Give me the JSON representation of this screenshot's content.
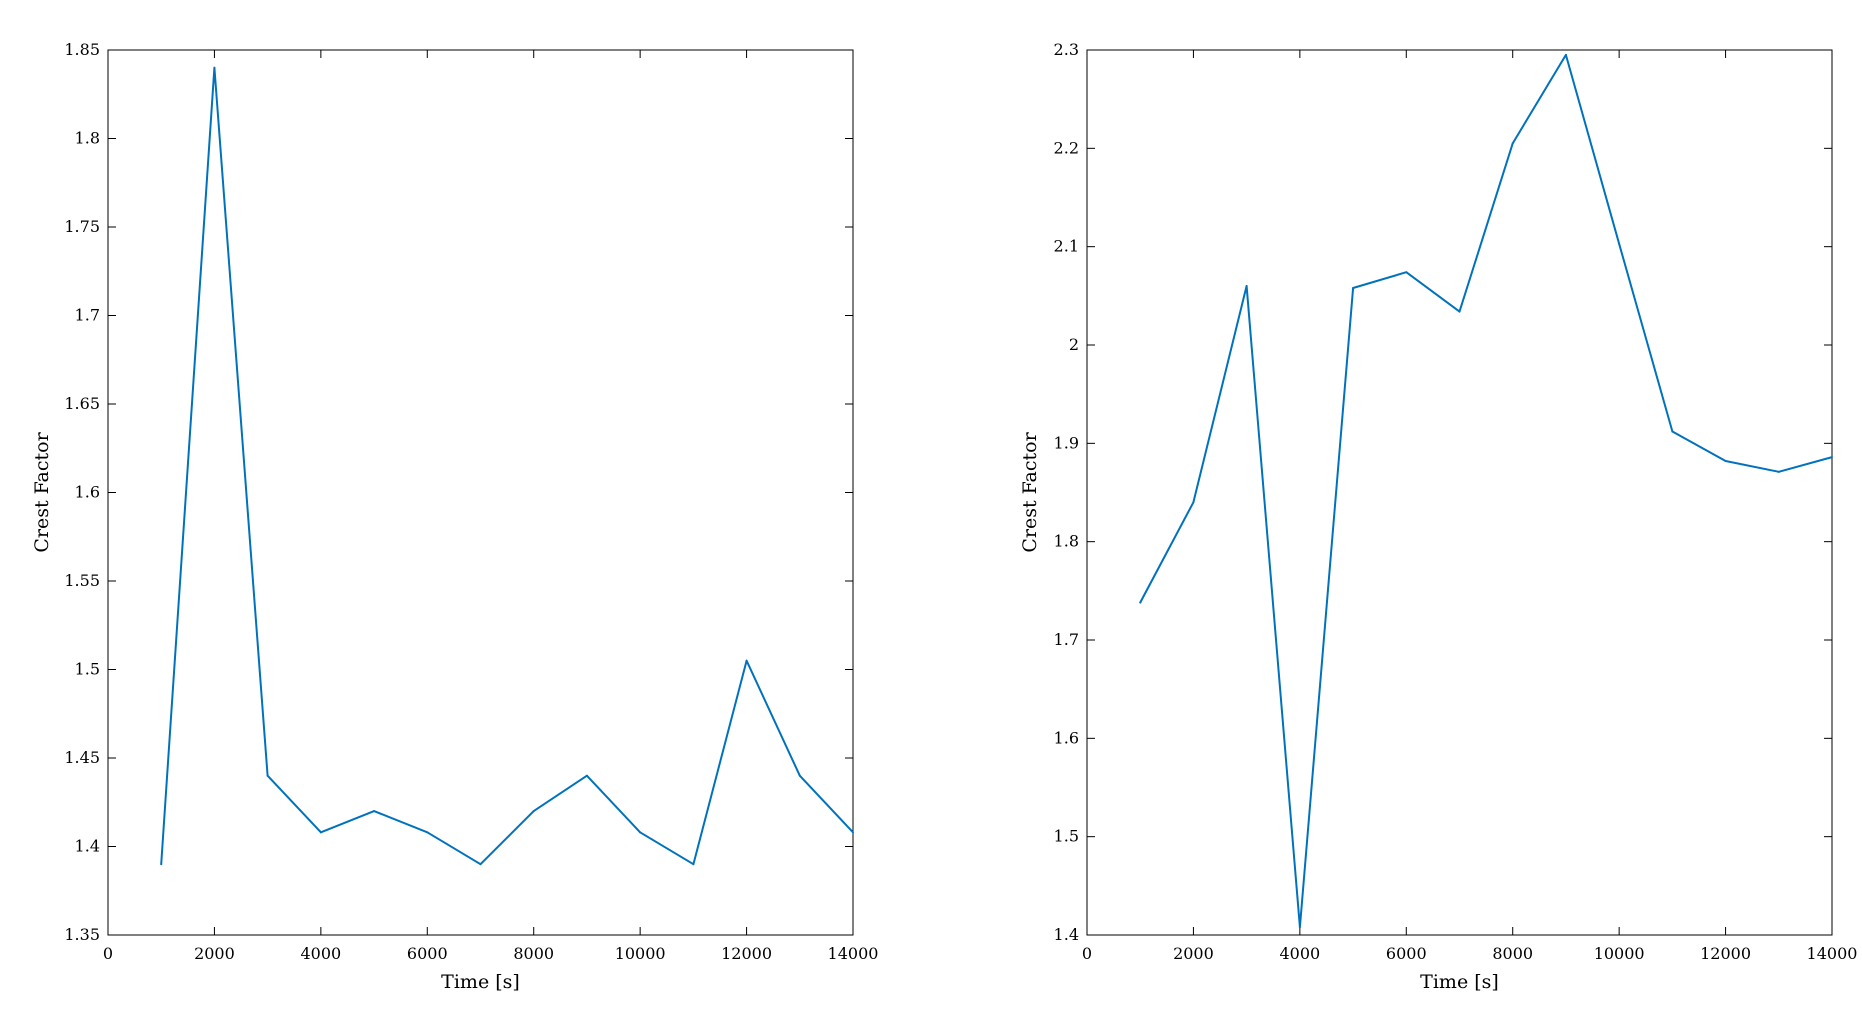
{
  "colors": {
    "series": "#0072BD",
    "axis": "#000000",
    "background": "#ffffff"
  },
  "chart_data": [
    {
      "type": "line",
      "xlabel": "Time [s]",
      "ylabel": "Crest Factor",
      "xlim": [
        0,
        14000
      ],
      "ylim": [
        1.35,
        1.85
      ],
      "xticks": [
        0,
        2000,
        4000,
        6000,
        8000,
        10000,
        12000,
        14000
      ],
      "xtick_labels": [
        "0",
        "2000",
        "4000",
        "6000",
        "8000",
        "10000",
        "12000",
        "14000"
      ],
      "yticks": [
        1.35,
        1.4,
        1.45,
        1.5,
        1.55,
        1.6,
        1.65,
        1.7,
        1.75,
        1.8,
        1.85
      ],
      "ytick_labels": [
        "1.35",
        "1.4",
        "1.45",
        "1.5",
        "1.55",
        "1.6",
        "1.65",
        "1.7",
        "1.75",
        "1.8",
        "1.85"
      ],
      "grid": false,
      "series": [
        {
          "x": [
            1000,
            2000,
            3000,
            4000,
            5000,
            6000,
            7000,
            8000,
            9000,
            10000,
            11000,
            12000,
            13000,
            14000
          ],
          "y": [
            1.39,
            1.84,
            1.44,
            1.408,
            1.42,
            1.408,
            1.39,
            1.42,
            1.44,
            1.408,
            1.39,
            1.505,
            1.44,
            1.408
          ]
        }
      ]
    },
    {
      "type": "line",
      "xlabel": "Time [s]",
      "ylabel": "Crest Factor",
      "xlim": [
        0,
        14000
      ],
      "ylim": [
        1.4,
        2.3
      ],
      "xticks": [
        0,
        2000,
        4000,
        6000,
        8000,
        10000,
        12000,
        14000
      ],
      "xtick_labels": [
        "0",
        "2000",
        "4000",
        "6000",
        "8000",
        "10000",
        "12000",
        "14000"
      ],
      "yticks": [
        1.4,
        1.5,
        1.6,
        1.7,
        1.8,
        1.9,
        2.0,
        2.1,
        2.2,
        2.3
      ],
      "ytick_labels": [
        "1.4",
        "1.5",
        "1.6",
        "1.7",
        "1.8",
        "1.9",
        "2",
        "2.1",
        "2.2",
        "2.3"
      ],
      "grid": false,
      "series": [
        {
          "x": [
            1000,
            2000,
            3000,
            4000,
            5000,
            6000,
            7000,
            8000,
            9000,
            10000,
            11000,
            12000,
            13000,
            14000
          ],
          "y": [
            1.738,
            1.84,
            2.06,
            1.408,
            2.058,
            2.074,
            2.034,
            2.205,
            2.295,
            2.103,
            1.912,
            1.882,
            1.871,
            1.886
          ]
        }
      ]
    }
  ]
}
